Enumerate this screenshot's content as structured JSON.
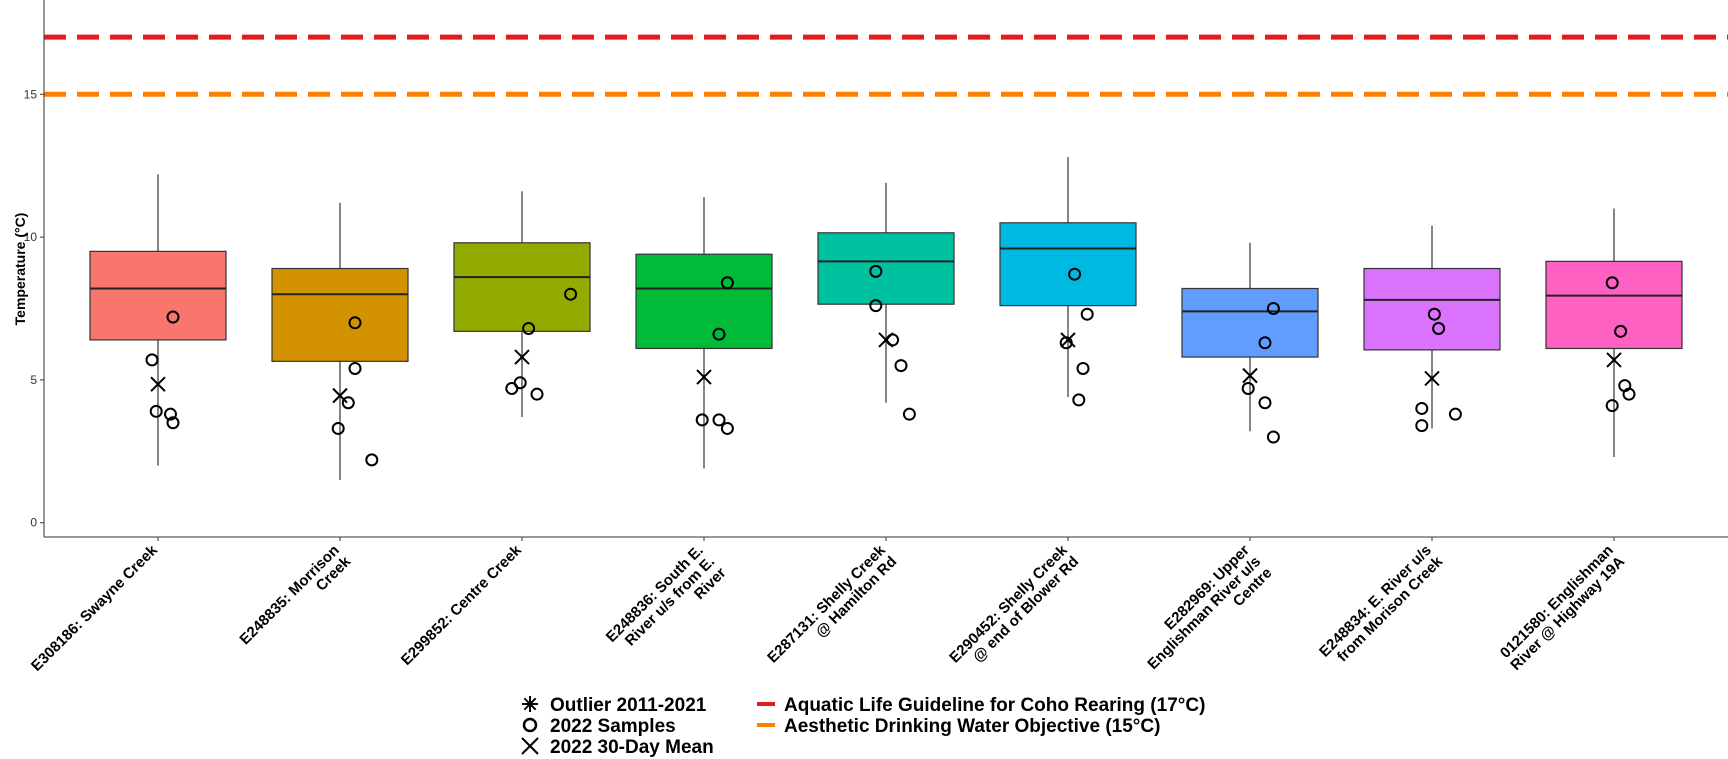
{
  "chart_data": {
    "type": "box",
    "ylabel": "Temperature (°C)",
    "ylim": [
      -0.5,
      18.3
    ],
    "yticks": [
      0,
      5,
      10,
      15
    ],
    "grid": false,
    "legend_position": "bottom",
    "categories": [
      [
        "E308186: Swayne Creek"
      ],
      [
        "E248835: Morrison",
        "Creek"
      ],
      [
        "E299852: Centre Creek"
      ],
      [
        "E248836: South E.",
        "River u/s from E.",
        "River"
      ],
      [
        "E287131: Shelly Creek",
        "@ Hamilton Rd"
      ],
      [
        "E290452: Shelly Creek",
        "@ end of Blower Rd"
      ],
      [
        "E282969: Upper",
        "Englishman River u/s",
        "Centre"
      ],
      [
        "E248834: E. River u/s",
        "from Morison Creek"
      ],
      [
        "0121580: Englishman",
        "River @ Highway 19A"
      ]
    ],
    "boxes": [
      {
        "min": 2.0,
        "q1": 6.4,
        "median": 8.2,
        "q3": 9.5,
        "max": 12.2,
        "color": "#F8766D"
      },
      {
        "min": 1.5,
        "q1": 5.65,
        "median": 8.0,
        "q3": 8.9,
        "max": 11.2,
        "color": "#D39200"
      },
      {
        "min": 3.7,
        "q1": 6.7,
        "median": 8.6,
        "q3": 9.8,
        "max": 11.6,
        "color": "#93AA00"
      },
      {
        "min": 1.9,
        "q1": 6.1,
        "median": 8.2,
        "q3": 9.4,
        "max": 11.4,
        "color": "#00BA38"
      },
      {
        "min": 4.2,
        "q1": 7.65,
        "median": 9.15,
        "q3": 10.15,
        "max": 11.9,
        "color": "#00C19F"
      },
      {
        "min": 4.4,
        "q1": 7.6,
        "median": 9.6,
        "q3": 10.5,
        "max": 12.8,
        "color": "#00B9E3"
      },
      {
        "min": 3.2,
        "q1": 5.8,
        "median": 7.4,
        "q3": 8.2,
        "max": 9.8,
        "color": "#619CFF"
      },
      {
        "min": 3.3,
        "q1": 6.05,
        "median": 7.8,
        "q3": 8.9,
        "max": 10.4,
        "color": "#DB72FB"
      },
      {
        "min": 2.3,
        "q1": 6.1,
        "median": 7.95,
        "q3": 9.15,
        "max": 11.0,
        "color": "#FF61C3"
      }
    ],
    "samples_2022": [
      [
        [
          0.5,
          7.2
        ],
        [
          0.25,
          5.7
        ],
        [
          0.3,
          3.9
        ],
        [
          0.47,
          3.8
        ],
        [
          0.5,
          3.5
        ]
      ],
      [
        [
          0.5,
          7.0
        ],
        [
          0.5,
          5.4
        ],
        [
          0.42,
          4.2
        ],
        [
          0.3,
          3.3
        ],
        [
          0.7,
          2.2
        ]
      ],
      [
        [
          0.9,
          8.0
        ],
        [
          0.4,
          6.8
        ],
        [
          0.2,
          4.7
        ],
        [
          0.3,
          4.9
        ],
        [
          0.5,
          4.5
        ]
      ],
      [
        [
          0.6,
          8.4
        ],
        [
          0.5,
          6.6
        ],
        [
          0.3,
          3.6
        ],
        [
          0.5,
          3.6
        ],
        [
          0.6,
          3.3
        ]
      ],
      [
        [
          0.2,
          8.8
        ],
        [
          0.2,
          7.6
        ],
        [
          0.4,
          6.4
        ],
        [
          0.5,
          5.5
        ],
        [
          0.6,
          3.8
        ]
      ],
      [
        [
          0.4,
          8.7
        ],
        [
          0.55,
          7.3
        ],
        [
          0.3,
          6.3
        ],
        [
          0.5,
          5.4
        ],
        [
          0.45,
          4.3
        ]
      ],
      [
        [
          0.6,
          7.5
        ],
        [
          0.5,
          6.3
        ],
        [
          0.3,
          4.7
        ],
        [
          0.5,
          4.2
        ],
        [
          0.6,
          3.0
        ]
      ],
      [
        [
          0.35,
          7.3
        ],
        [
          0.4,
          6.8
        ],
        [
          0.2,
          4.0
        ],
        [
          0.2,
          3.4
        ],
        [
          0.6,
          3.8
        ]
      ],
      [
        [
          0.3,
          8.4
        ],
        [
          0.4,
          6.7
        ],
        [
          0.45,
          4.8
        ],
        [
          0.5,
          4.5
        ],
        [
          0.3,
          4.1
        ]
      ]
    ],
    "mean_30day_2022": [
      4.85,
      4.45,
      5.8,
      5.1,
      6.4,
      6.4,
      5.15,
      5.05,
      5.7
    ],
    "reference_lines": [
      {
        "value": 17,
        "color": "#E41A1C",
        "label": "Aquatic Life Guideline for Coho Rearing (17°C)"
      },
      {
        "value": 15,
        "color": "#FF7F00",
        "label": "Aesthetic Drinking Water Objective (15°C)"
      }
    ],
    "legend": {
      "symbols": [
        {
          "marker": "asterisk",
          "label": "Outlier 2011-2021"
        },
        {
          "marker": "circle",
          "label": "2022 Samples"
        },
        {
          "marker": "cross",
          "label": "2022 30-Day Mean"
        }
      ]
    }
  }
}
